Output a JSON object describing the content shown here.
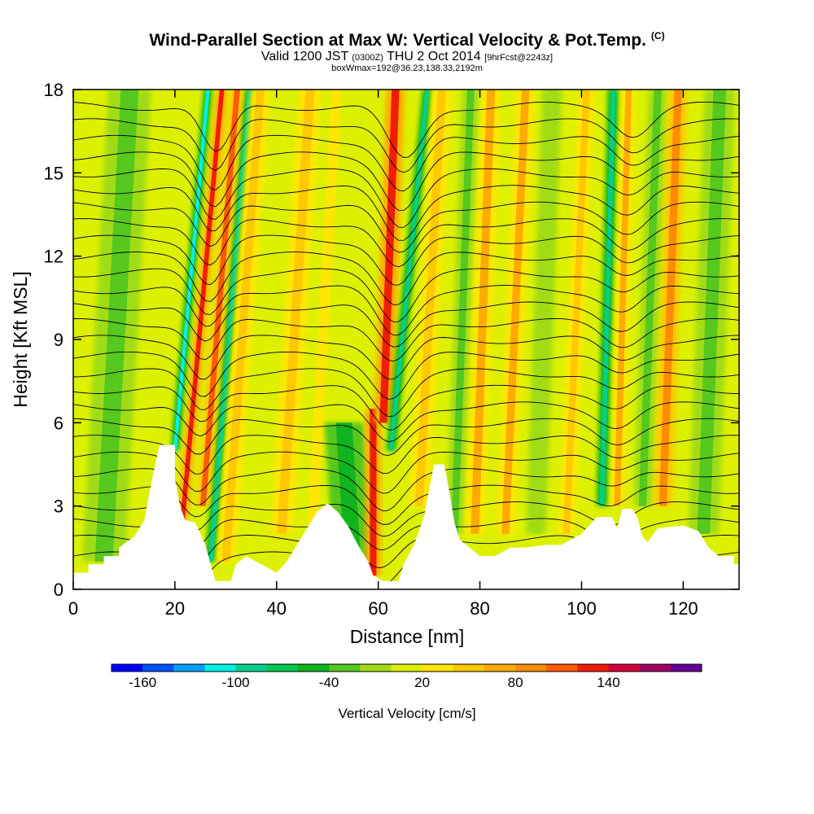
{
  "header": {
    "title": "Wind-Parallel Section at Max W: Vertical Velocity & Pot.Temp.",
    "copyright": "(C)",
    "valid_prefix": "Valid 1200 JST",
    "valid_utc": "(0300Z)",
    "valid_date": "THU 2 Oct 2014",
    "forecast": "[9hrFcst@2243z]",
    "boxwmax": "boxWmax=192@36.23,138.33,2192m"
  },
  "colorbar": {
    "label": "Vertical Velocity [cm/s]",
    "colors": [
      "#0000ff",
      "#0050ff",
      "#00a0ff",
      "#00f0e6",
      "#00d08c",
      "#00c850",
      "#10b41e",
      "#56c81e",
      "#a0dc14",
      "#dcf000",
      "#ffe600",
      "#ffc800",
      "#ffaa00",
      "#ff8c00",
      "#ff5a00",
      "#f01e00",
      "#d2003c",
      "#a00064",
      "#640096"
    ],
    "tick_labels": [
      "-160",
      "-100",
      "-40",
      "20",
      "80",
      "140"
    ]
  },
  "chart_data": {
    "type": "heatmap",
    "xlabel": "Distance [nm]",
    "ylabel": "Height [Kft MSL]",
    "xlim": [
      0,
      131
    ],
    "ylim": [
      0,
      18
    ],
    "xticks": [
      "0",
      "20",
      "40",
      "60",
      "80",
      "100",
      "120"
    ],
    "yticks": [
      "0",
      "3",
      "6",
      "9",
      "12",
      "15",
      "18"
    ],
    "terrain_kft": [
      [
        0,
        0.6
      ],
      [
        3,
        0.6
      ],
      [
        3,
        0.9
      ],
      [
        6,
        0.9
      ],
      [
        6,
        1.2
      ],
      [
        9,
        1.2
      ],
      [
        9,
        1.5
      ],
      [
        12,
        1.9
      ],
      [
        14,
        2.5
      ],
      [
        15,
        3.5
      ],
      [
        16,
        4.4
      ],
      [
        17,
        5.2
      ],
      [
        20,
        5.2
      ],
      [
        20,
        4.0
      ],
      [
        21,
        3.0
      ],
      [
        22,
        2.5
      ],
      [
        24,
        2.4
      ],
      [
        26,
        1.6
      ],
      [
        27,
        0.9
      ],
      [
        28,
        0.3
      ],
      [
        31,
        0.3
      ],
      [
        32,
        0.9
      ],
      [
        34,
        1.2
      ],
      [
        37,
        0.9
      ],
      [
        40,
        0.6
      ],
      [
        42,
        1.0
      ],
      [
        44,
        1.6
      ],
      [
        46,
        2.2
      ],
      [
        48,
        2.8
      ],
      [
        50,
        3.1
      ],
      [
        52,
        2.8
      ],
      [
        54,
        2.3
      ],
      [
        56,
        1.6
      ],
      [
        58,
        1.0
      ],
      [
        59,
        0.5
      ],
      [
        61,
        0.3
      ],
      [
        64,
        0.3
      ],
      [
        65,
        0.9
      ],
      [
        67,
        1.6
      ],
      [
        69,
        2.6
      ],
      [
        70,
        3.6
      ],
      [
        71,
        4.5
      ],
      [
        73,
        4.5
      ],
      [
        74,
        3.5
      ],
      [
        75,
        2.4
      ],
      [
        76,
        1.8
      ],
      [
        78,
        1.5
      ],
      [
        80,
        1.2
      ],
      [
        83,
        1.2
      ],
      [
        86,
        1.5
      ],
      [
        89,
        1.5
      ],
      [
        93,
        1.6
      ],
      [
        96,
        1.6
      ],
      [
        100,
        2.0
      ],
      [
        103,
        2.6
      ],
      [
        106,
        2.6
      ],
      [
        107,
        2.2
      ],
      [
        108,
        2.9
      ],
      [
        110,
        2.9
      ],
      [
        111,
        2.6
      ],
      [
        112,
        1.9
      ],
      [
        113,
        1.7
      ],
      [
        115,
        2.2
      ],
      [
        120,
        2.3
      ],
      [
        123,
        2.1
      ],
      [
        125,
        1.5
      ],
      [
        127,
        1.2
      ],
      [
        130,
        1.2
      ],
      [
        130,
        0.9
      ],
      [
        131,
        0.9
      ]
    ],
    "vertical_velocity_cm_s": [
      {
        "x": 20,
        "base": 5,
        "top": 18,
        "tilt": 0.5,
        "width": 0.7,
        "value": -110
      },
      {
        "x": 21.5,
        "base": 2.5,
        "top": 18,
        "tilt": 0.5,
        "width": 0.9,
        "value": 130
      },
      {
        "x": 27,
        "base": 1,
        "top": 18,
        "tilt": 0.45,
        "width": 0.9,
        "value": -90
      },
      {
        "x": 25.5,
        "base": 3,
        "top": 18,
        "tilt": 0.45,
        "width": 1.1,
        "value": 110
      },
      {
        "x": 30,
        "base": 1,
        "top": 18,
        "tilt": 0.4,
        "width": 1.6,
        "value": 40
      },
      {
        "x": 41,
        "base": 2,
        "top": 18,
        "tilt": 0.35,
        "width": 1.8,
        "value": 40
      },
      {
        "x": 47,
        "base": 2,
        "top": 18,
        "tilt": 0.3,
        "width": 2.0,
        "value": 30
      },
      {
        "x": 55,
        "base": 1,
        "top": 6,
        "tilt": -0.35,
        "width": 3.2,
        "value": -50
      },
      {
        "x": 59,
        "base": 0.5,
        "top": 6.5,
        "tilt": 0,
        "width": 1.3,
        "value": 130
      },
      {
        "x": 61,
        "base": 6,
        "top": 18,
        "tilt": 0.2,
        "width": 1.5,
        "value": 135
      },
      {
        "x": 62.5,
        "base": 5,
        "top": 18,
        "tilt": 0.55,
        "width": 0.8,
        "value": -95
      },
      {
        "x": 68,
        "base": 3,
        "top": 18,
        "tilt": 0.3,
        "width": 1.6,
        "value": 50
      },
      {
        "x": 75,
        "base": 2,
        "top": 18,
        "tilt": 0.2,
        "width": 1.4,
        "value": -30
      },
      {
        "x": 79,
        "base": 2,
        "top": 18,
        "tilt": 0.2,
        "width": 1.6,
        "value": 70
      },
      {
        "x": 85,
        "base": 2,
        "top": 18,
        "tilt": 0.25,
        "width": 1.5,
        "value": 60
      },
      {
        "x": 91,
        "base": 2,
        "top": 18,
        "tilt": 0.2,
        "width": 1.6,
        "value": -20
      },
      {
        "x": 97,
        "base": 2,
        "top": 18,
        "tilt": 0.25,
        "width": 1.3,
        "value": 55
      },
      {
        "x": 104,
        "base": 3,
        "top": 18,
        "tilt": 0.15,
        "width": 0.9,
        "value": -100
      },
      {
        "x": 107,
        "base": 3,
        "top": 18,
        "tilt": 0.15,
        "width": 1.2,
        "value": 70
      },
      {
        "x": 112,
        "base": 3,
        "top": 18,
        "tilt": 0.2,
        "width": 1.5,
        "value": -40
      },
      {
        "x": 116,
        "base": 3,
        "top": 18,
        "tilt": 0.2,
        "width": 1.5,
        "value": 80
      },
      {
        "x": 6,
        "base": 1,
        "top": 18,
        "tilt": 0.3,
        "width": 3.5,
        "value": -25
      },
      {
        "x": 124,
        "base": 2,
        "top": 18,
        "tilt": 0.2,
        "width": 2.5,
        "value": -25
      }
    ],
    "isentropes": {
      "heights_kft": [
        1.2,
        1.8,
        2.4,
        3.0,
        3.6,
        4.2,
        4.8,
        5.4,
        6.0,
        6.6,
        7.2,
        7.8,
        8.4,
        9.0,
        9.6,
        10.2,
        10.8,
        11.4,
        12.0,
        12.6,
        13.2,
        13.8,
        14.4,
        15.0,
        15.6,
        16.2,
        16.8,
        17.4
      ],
      "wave_features": [
        {
          "x": 23,
          "amp": -1.8,
          "width": 4
        },
        {
          "x": 60,
          "amp": -2.0,
          "width": 5
        },
        {
          "x": 105,
          "amp": -1.0,
          "width": 5
        }
      ]
    }
  }
}
